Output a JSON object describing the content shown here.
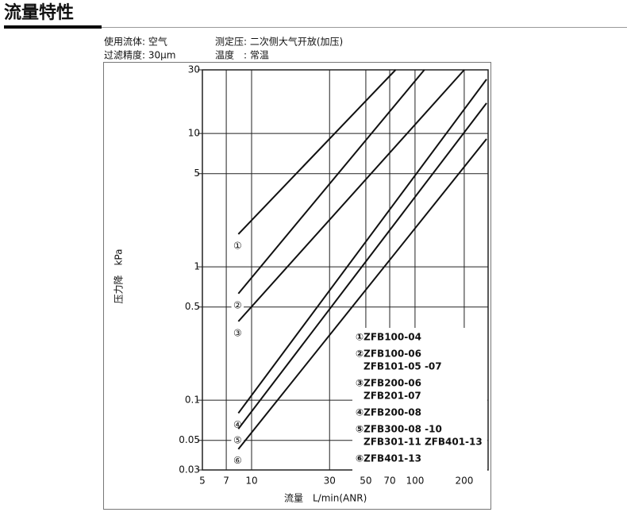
{
  "header": {
    "title": "流量特性"
  },
  "conditions": [
    "使用流体: 空气",
    "过滤精度: 30μm",
    "测定压: 二次侧大气开放(加压)",
    "温度　: 常温"
  ],
  "chart_data": {
    "type": "line",
    "log_x": true,
    "log_y": true,
    "grid": true,
    "xlabel": "流量　L/min(ANR)",
    "ylabel": "压力降　kPa",
    "xlim": [
      5,
      280
    ],
    "ylim": [
      0.03,
      30
    ],
    "xticks": [
      5,
      7,
      10,
      30,
      50,
      70,
      100,
      200
    ],
    "yticks": [
      0.03,
      0.05,
      0.1,
      0.5,
      1,
      5,
      10,
      30
    ],
    "series": [
      {
        "marker": "①",
        "legend_lines": [
          "①ZFB100-04"
        ],
        "color": "#111111",
        "x": [
          8.3,
          76
        ],
        "values": [
          1.76,
          30
        ]
      },
      {
        "marker": "②",
        "legend_lines": [
          "②ZFB100-06",
          "ZFB101-05 -07"
        ],
        "color": "#111111",
        "x": [
          8.3,
          114
        ],
        "values": [
          0.63,
          30
        ]
      },
      {
        "marker": "③",
        "legend_lines": [
          "③ZFB200-06",
          "ZFB201-07"
        ],
        "color": "#111111",
        "x": [
          8.3,
          200
        ],
        "values": [
          0.39,
          30
        ]
      },
      {
        "marker": "④",
        "legend_lines": [
          "④ZFB200-08"
        ],
        "color": "#111111",
        "x": [
          8.3,
          274
        ],
        "values": [
          0.08,
          25.5
        ]
      },
      {
        "marker": "⑤",
        "legend_lines": [
          "⑤ZFB300-08 -10",
          "ZFB301-11  ZFB401-13"
        ],
        "color": "#111111",
        "x": [
          8.3,
          274
        ],
        "values": [
          0.061,
          16.9
        ]
      },
      {
        "marker": "⑥",
        "legend_lines": [
          "⑥ZFB401-13"
        ],
        "color": "#111111",
        "x": [
          8.3,
          274
        ],
        "values": [
          0.043,
          9.1
        ]
      }
    ]
  }
}
